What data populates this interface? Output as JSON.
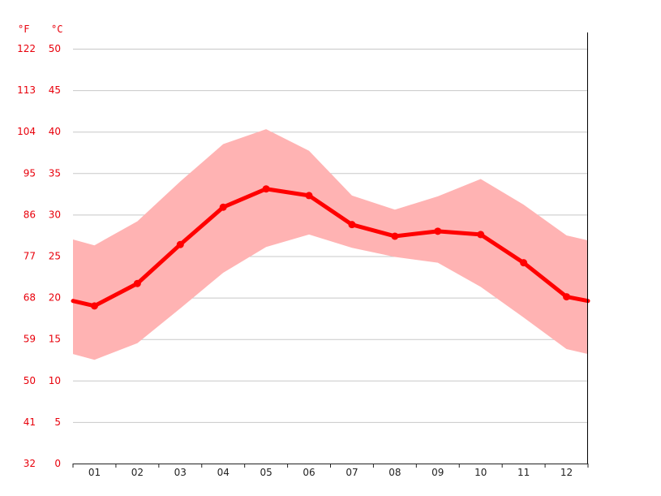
{
  "chart_data": {
    "type": "area",
    "units": {
      "fahrenheit": "°F",
      "celsius": "°C"
    },
    "y_celsius_ticks": [
      "50",
      "45",
      "40",
      "35",
      "30",
      "25",
      "20",
      "15",
      "10",
      "5",
      "0"
    ],
    "y_fahrenheit_ticks": [
      "122",
      "113",
      "104",
      "95",
      "86",
      "77",
      "68",
      "59",
      "50",
      "41",
      "32"
    ],
    "ylim": [
      0,
      50
    ],
    "categories": [
      "01",
      "02",
      "03",
      "04",
      "05",
      "06",
      "07",
      "08",
      "09",
      "10",
      "11",
      "12"
    ],
    "series": [
      {
        "values": [
          19.0,
          21.7,
          26.4,
          30.9,
          33.1,
          32.3,
          28.8,
          27.4,
          28.0,
          27.6,
          24.2,
          20.1
        ]
      },
      {
        "values": [
          26.3,
          29.2,
          34.0,
          38.5,
          40.3,
          37.7,
          32.3,
          30.6,
          32.2,
          34.3,
          31.2,
          27.5
        ]
      },
      {
        "values": [
          12.5,
          14.5,
          18.7,
          23.0,
          26.1,
          27.6,
          26.0,
          24.9,
          24.2,
          21.3,
          17.6,
          13.8
        ]
      }
    ],
    "boundary": {
      "start": [
        19.6,
        27.0,
        13.2
      ],
      "end": [
        19.6,
        26.9,
        13.2
      ]
    },
    "colors": {
      "mean": "#ff0000",
      "range": "#ffb3b3",
      "tick_text": "#e8000b",
      "grid": "#c8c8c8"
    },
    "grid": true
  }
}
